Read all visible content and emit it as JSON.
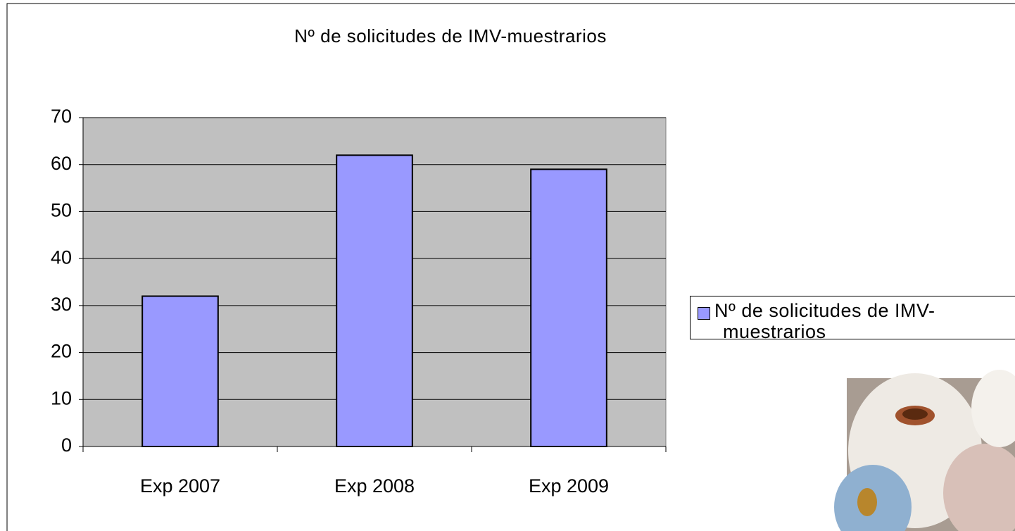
{
  "chart_data": {
    "type": "bar",
    "title": "Nº de solicitudes de IMV-muestrarios",
    "categories": [
      "Exp 2007",
      "Exp 2008",
      "Exp 2009"
    ],
    "series": [
      {
        "name": "Nº de solicitudes de IMV-muestrarios",
        "color": "#9999ff",
        "values": [
          32,
          62,
          59
        ]
      }
    ],
    "ylim": [
      0,
      70
    ],
    "yticks": [
      0,
      10,
      20,
      30,
      40,
      50,
      60,
      70
    ],
    "grid": true,
    "legend": "right"
  }
}
